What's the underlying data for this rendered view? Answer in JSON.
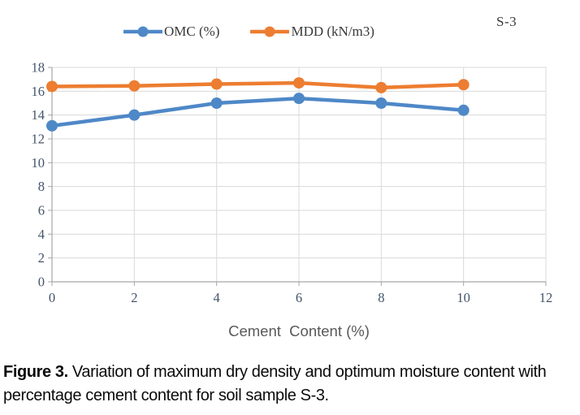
{
  "figure": {
    "annotation": "S-3",
    "caption_label": "Figure 3.",
    "caption_text": " Variation of maximum dry density and optimum moisture content with percentage cement content for soil sample S-3."
  },
  "chart_data": {
    "type": "line",
    "x": [
      0,
      2,
      4,
      6,
      8,
      10
    ],
    "series": [
      {
        "name": "OMC (%)",
        "color": "#4E88C7",
        "values": [
          13.1,
          14.0,
          15.0,
          15.4,
          15.0,
          14.4
        ]
      },
      {
        "name": "MDD (kN/m3)",
        "color": "#ED7D31",
        "values": [
          16.4,
          16.45,
          16.6,
          16.7,
          16.3,
          16.55
        ]
      }
    ],
    "title": "",
    "xlabel": "Cement  Content (%)",
    "ylabel": "",
    "xlim": [
      0,
      12
    ],
    "ylim": [
      0,
      18
    ],
    "xstep": 2,
    "ystep": 2,
    "grid": true,
    "legend_position": "top",
    "marker": "circle",
    "grid_color": "#D9D9D9",
    "axis_color": "#A6A6A6",
    "tick_label_color": "#44546A",
    "axis_title_color": "#595959"
  }
}
